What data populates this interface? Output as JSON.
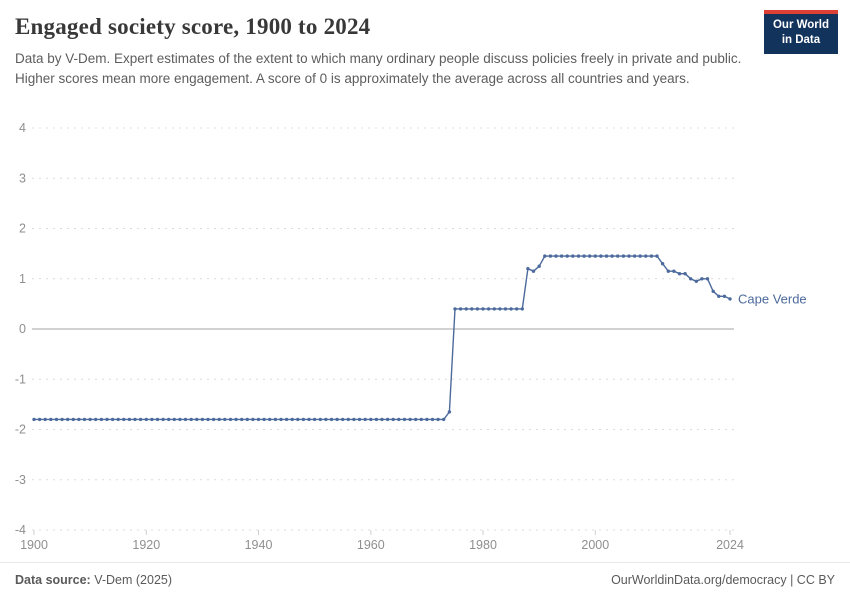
{
  "header": {
    "title": "Engaged society score, 1900 to 2024",
    "subtitle": "Data by V-Dem. Expert estimates of the extent to which many ordinary people discuss policies freely in private and public. Higher scores mean more engagement. A score of 0 is approximately the average across all countries and years.",
    "logo": {
      "line1": "Our World",
      "line2": "in Data",
      "bg_color": "#12335c",
      "accent_color": "#dc3f34"
    }
  },
  "chart_data": {
    "type": "line",
    "title": "Engaged society score, 1900 to 2024",
    "xlabel": "",
    "ylabel": "",
    "x_range": [
      1900,
      2024
    ],
    "y_range": [
      -4,
      4
    ],
    "x_ticks": [
      1900,
      1920,
      1940,
      1960,
      1980,
      2000,
      2024
    ],
    "y_ticks": [
      4,
      3,
      2,
      1,
      0,
      -1,
      -2,
      -3,
      -4
    ],
    "grid": "horizontal-dashed",
    "zero_line": true,
    "legend": "end-of-line-label",
    "series": [
      {
        "name": "Cape Verde",
        "color": "#4c6a9c",
        "segments": [
          {
            "from": 1900,
            "to": 1973,
            "value": -1.8
          },
          {
            "from": 1974,
            "to": 1974,
            "value": -1.65
          },
          {
            "from": 1975,
            "to": 1987,
            "value": 0.4
          },
          {
            "from": 1988,
            "to": 1988,
            "value": 1.2
          },
          {
            "from": 1989,
            "to": 1989,
            "value": 1.15
          },
          {
            "from": 1990,
            "to": 1990,
            "value": 1.25
          },
          {
            "from": 1991,
            "to": 2011,
            "value": 1.45
          },
          {
            "from": 2012,
            "to": 2012,
            "value": 1.3
          },
          {
            "from": 2013,
            "to": 2014,
            "value": 1.15
          },
          {
            "from": 2015,
            "to": 2016,
            "value": 1.1
          },
          {
            "from": 2017,
            "to": 2017,
            "value": 1.0
          },
          {
            "from": 2018,
            "to": 2018,
            "value": 0.95
          },
          {
            "from": 2019,
            "to": 2020,
            "value": 1.0
          },
          {
            "from": 2021,
            "to": 2021,
            "value": 0.75
          },
          {
            "from": 2022,
            "to": 2023,
            "value": 0.65
          },
          {
            "from": 2024,
            "to": 2024,
            "value": 0.6
          }
        ]
      }
    ]
  },
  "footer": {
    "source_label": "Data source:",
    "source_value": " V-Dem (2025)",
    "right_text": "OurWorldinData.org/democracy | CC BY"
  }
}
